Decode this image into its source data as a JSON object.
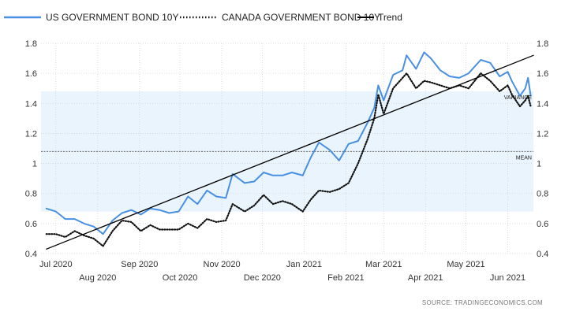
{
  "chart_data": {
    "type": "line",
    "title": "",
    "xlabel": "",
    "ylabel": "",
    "ylim": [
      0.4,
      1.8
    ],
    "y_ticks": [
      "0.4",
      "0.6",
      "0.8",
      "1",
      "1.2",
      "1.4",
      "1.6",
      "1.8"
    ],
    "x_ticks_upper": [
      "Jul 2020",
      "Sep 2020",
      "Nov 2020",
      "Jan 2021",
      "Mar 2021",
      "May 2021"
    ],
    "x_ticks_lower": [
      "Aug 2020",
      "Oct 2020",
      "Dec 2020",
      "Feb 2021",
      "Apr 2021",
      "Jun 2021"
    ],
    "grid": true,
    "legend_position": "top-left",
    "series": [
      {
        "name": "US GOVERNMENT BOND 10Y",
        "color": "#4a90e2",
        "style": "solid",
        "points": [
          [
            "2020-06-24",
            0.7
          ],
          [
            "2020-07-01",
            0.68
          ],
          [
            "2020-07-08",
            0.63
          ],
          [
            "2020-07-15",
            0.63
          ],
          [
            "2020-07-22",
            0.6
          ],
          [
            "2020-07-29",
            0.58
          ],
          [
            "2020-08-05",
            0.53
          ],
          [
            "2020-08-12",
            0.62
          ],
          [
            "2020-08-19",
            0.67
          ],
          [
            "2020-08-26",
            0.69
          ],
          [
            "2020-09-02",
            0.66
          ],
          [
            "2020-09-09",
            0.7
          ],
          [
            "2020-09-16",
            0.69
          ],
          [
            "2020-09-23",
            0.67
          ],
          [
            "2020-09-30",
            0.68
          ],
          [
            "2020-10-07",
            0.78
          ],
          [
            "2020-10-14",
            0.73
          ],
          [
            "2020-10-21",
            0.82
          ],
          [
            "2020-10-28",
            0.78
          ],
          [
            "2020-11-04",
            0.77
          ],
          [
            "2020-11-09",
            0.93
          ],
          [
            "2020-11-18",
            0.87
          ],
          [
            "2020-11-25",
            0.88
          ],
          [
            "2020-12-02",
            0.94
          ],
          [
            "2020-12-09",
            0.92
          ],
          [
            "2020-12-16",
            0.92
          ],
          [
            "2020-12-23",
            0.94
          ],
          [
            "2020-12-31",
            0.92
          ],
          [
            "2021-01-06",
            1.04
          ],
          [
            "2021-01-12",
            1.14
          ],
          [
            "2021-01-20",
            1.09
          ],
          [
            "2021-01-27",
            1.02
          ],
          [
            "2021-02-03",
            1.13
          ],
          [
            "2021-02-10",
            1.15
          ],
          [
            "2021-02-17",
            1.27
          ],
          [
            "2021-02-22",
            1.37
          ],
          [
            "2021-02-25",
            1.52
          ],
          [
            "2021-03-01",
            1.42
          ],
          [
            "2021-03-08",
            1.59
          ],
          [
            "2021-03-15",
            1.62
          ],
          [
            "2021-03-18",
            1.72
          ],
          [
            "2021-03-25",
            1.63
          ],
          [
            "2021-03-31",
            1.74
          ],
          [
            "2021-04-05",
            1.7
          ],
          [
            "2021-04-12",
            1.62
          ],
          [
            "2021-04-19",
            1.58
          ],
          [
            "2021-04-26",
            1.57
          ],
          [
            "2021-05-03",
            1.6
          ],
          [
            "2021-05-12",
            1.69
          ],
          [
            "2021-05-19",
            1.67
          ],
          [
            "2021-05-26",
            1.58
          ],
          [
            "2021-06-01",
            1.61
          ],
          [
            "2021-06-04",
            1.55
          ],
          [
            "2021-06-10",
            1.45
          ],
          [
            "2021-06-14",
            1.5
          ],
          [
            "2021-06-16",
            1.57
          ],
          [
            "2021-06-18",
            1.45
          ]
        ]
      },
      {
        "name": "CANADA GOVERNMENT BOND 10Y",
        "color": "#111111",
        "style": "dotted",
        "points": [
          [
            "2020-06-24",
            0.53
          ],
          [
            "2020-07-01",
            0.53
          ],
          [
            "2020-07-08",
            0.51
          ],
          [
            "2020-07-15",
            0.55
          ],
          [
            "2020-07-22",
            0.52
          ],
          [
            "2020-07-29",
            0.5
          ],
          [
            "2020-08-05",
            0.45
          ],
          [
            "2020-08-12",
            0.55
          ],
          [
            "2020-08-19",
            0.62
          ],
          [
            "2020-08-26",
            0.61
          ],
          [
            "2020-09-02",
            0.55
          ],
          [
            "2020-09-09",
            0.59
          ],
          [
            "2020-09-16",
            0.56
          ],
          [
            "2020-09-23",
            0.56
          ],
          [
            "2020-09-30",
            0.56
          ],
          [
            "2020-10-07",
            0.6
          ],
          [
            "2020-10-14",
            0.57
          ],
          [
            "2020-10-21",
            0.63
          ],
          [
            "2020-10-28",
            0.61
          ],
          [
            "2020-11-04",
            0.62
          ],
          [
            "2020-11-09",
            0.73
          ],
          [
            "2020-11-18",
            0.68
          ],
          [
            "2020-11-25",
            0.72
          ],
          [
            "2020-12-02",
            0.79
          ],
          [
            "2020-12-09",
            0.73
          ],
          [
            "2020-12-16",
            0.75
          ],
          [
            "2020-12-23",
            0.73
          ],
          [
            "2020-12-31",
            0.68
          ],
          [
            "2021-01-06",
            0.76
          ],
          [
            "2021-01-12",
            0.82
          ],
          [
            "2021-01-20",
            0.81
          ],
          [
            "2021-01-27",
            0.83
          ],
          [
            "2021-02-03",
            0.87
          ],
          [
            "2021-02-10",
            1.0
          ],
          [
            "2021-02-17",
            1.16
          ],
          [
            "2021-02-22",
            1.3
          ],
          [
            "2021-02-25",
            1.46
          ],
          [
            "2021-03-01",
            1.33
          ],
          [
            "2021-03-08",
            1.5
          ],
          [
            "2021-03-15",
            1.57
          ],
          [
            "2021-03-18",
            1.6
          ],
          [
            "2021-03-25",
            1.5
          ],
          [
            "2021-03-31",
            1.55
          ],
          [
            "2021-04-05",
            1.54
          ],
          [
            "2021-04-12",
            1.52
          ],
          [
            "2021-04-19",
            1.5
          ],
          [
            "2021-04-26",
            1.52
          ],
          [
            "2021-05-03",
            1.5
          ],
          [
            "2021-05-12",
            1.6
          ],
          [
            "2021-05-19",
            1.55
          ],
          [
            "2021-05-26",
            1.48
          ],
          [
            "2021-06-01",
            1.52
          ],
          [
            "2021-06-04",
            1.46
          ],
          [
            "2021-06-10",
            1.38
          ],
          [
            "2021-06-14",
            1.42
          ],
          [
            "2021-06-16",
            1.45
          ],
          [
            "2021-06-18",
            1.38
          ]
        ]
      },
      {
        "name": "Trend",
        "color": "#000000",
        "style": "solid",
        "points": [
          [
            "2020-06-24",
            0.43
          ],
          [
            "2021-06-20",
            1.72
          ]
        ]
      }
    ],
    "band": {
      "from": 0.68,
      "to": 1.48,
      "label": "VARIANCE",
      "color": "#eaf4fd"
    },
    "mean": {
      "value": 1.08,
      "label": "MEAN"
    },
    "source": "SOURCE:  TRADINGECONOMICS.COM"
  }
}
